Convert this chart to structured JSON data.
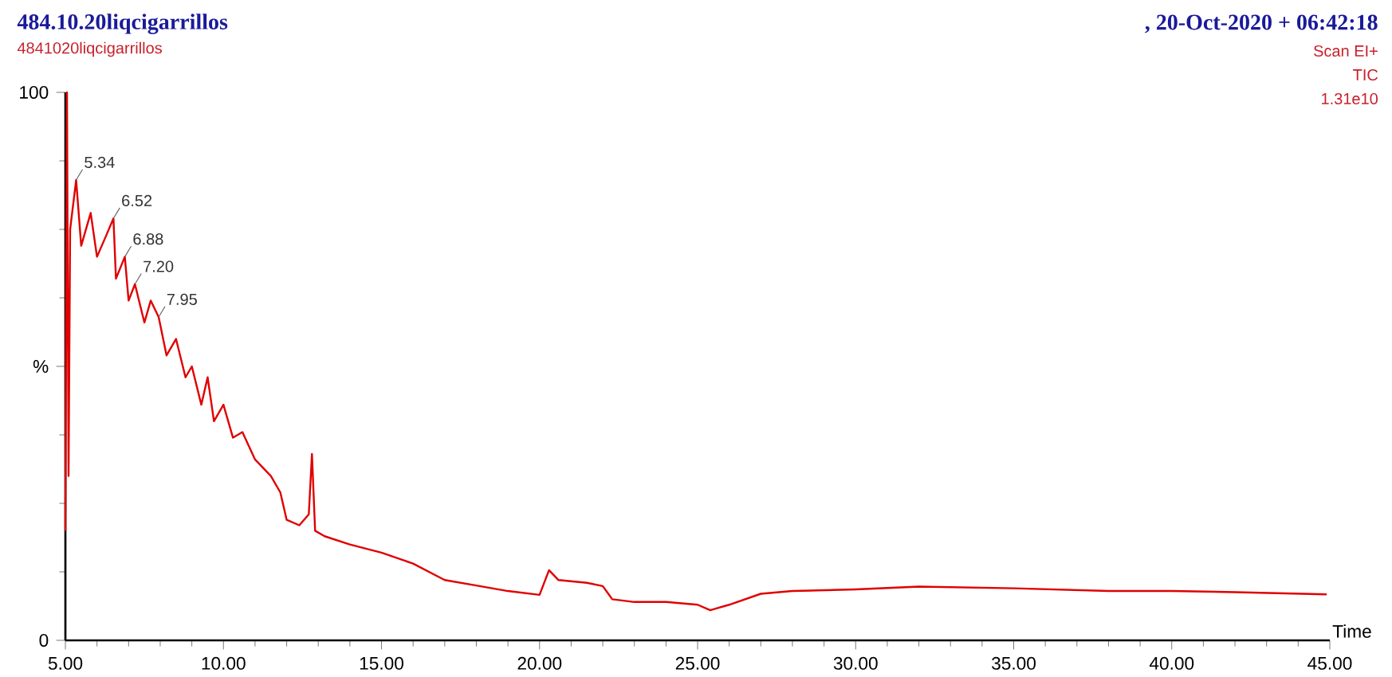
{
  "chart_data": {
    "type": "line",
    "title": "484.10.20liqcigarrillos",
    "subtitle": "4841020liqcigarrillos",
    "xlabel": "Time",
    "annotations": [
      ", 20-Oct-2020 + 06:42:18",
      "Scan EI+",
      "TIC",
      "1.31e10",
      {
        "text": "5.34",
        "x": 5.34,
        "y": 84
      },
      {
        "text": "6.52",
        "x": 6.52,
        "y": 77
      },
      {
        "text": "6.88",
        "x": 6.88,
        "y": 70
      },
      {
        "text": "7.20",
        "x": 7.2,
        "y": 65
      },
      {
        "text": "7.95",
        "x": 7.95,
        "y": 59
      }
    ],
    "x": [
      5.0,
      5.05,
      5.1,
      5.15,
      5.34,
      5.5,
      5.8,
      6.0,
      6.3,
      6.52,
      6.6,
      6.88,
      7.0,
      7.2,
      7.5,
      7.7,
      7.95,
      8.2,
      8.5,
      8.8,
      9.0,
      9.3,
      9.5,
      9.7,
      10.0,
      10.3,
      10.6,
      11.0,
      11.5,
      11.8,
      12.0,
      12.4,
      12.7,
      12.8,
      12.9,
      13.2,
      14,
      15,
      16,
      17,
      18,
      19,
      20,
      20.3,
      20.6,
      21.5,
      22.0,
      22.3,
      23,
      24,
      25,
      25.4,
      26,
      27,
      28,
      30,
      32,
      35,
      38,
      40,
      42,
      44.9
    ],
    "series": [
      {
        "color": "#e00000",
        "values": [
          20,
          100,
          30,
          75,
          84,
          72,
          78,
          70,
          74,
          77,
          66,
          70,
          62,
          65,
          58,
          62,
          59,
          52,
          55,
          48,
          50,
          43,
          48,
          40,
          43,
          37,
          38,
          33,
          30,
          27,
          22,
          21,
          23,
          34,
          20,
          19,
          17.5,
          16,
          14,
          11,
          10,
          9,
          8.3,
          12.8,
          11,
          10.5,
          9.9,
          7.5,
          7,
          7,
          6.5,
          5.5,
          6.5,
          8.5,
          9,
          9.3,
          9.8,
          9.5,
          9,
          9,
          8.8,
          8.4
        ]
      }
    ],
    "xlim": [
      5,
      45
    ],
    "ylim": [
      0,
      100
    ],
    "xticks": [
      {
        "value": 5,
        "label": "5.00"
      },
      {
        "value": 10,
        "label": "10.00"
      },
      {
        "value": 15,
        "label": "15.00"
      },
      {
        "value": 20,
        "label": "20.00"
      },
      {
        "value": 25,
        "label": "25.00"
      },
      {
        "value": 30,
        "label": "30.00"
      },
      {
        "value": 35,
        "label": "35.00"
      },
      {
        "value": 40,
        "label": "40.00"
      },
      {
        "value": 45,
        "label": "45.00"
      }
    ],
    "yticks": [
      0,
      {
        "value": 50,
        "label": "%"
      },
      100
    ],
    "line_style": "solid"
  }
}
